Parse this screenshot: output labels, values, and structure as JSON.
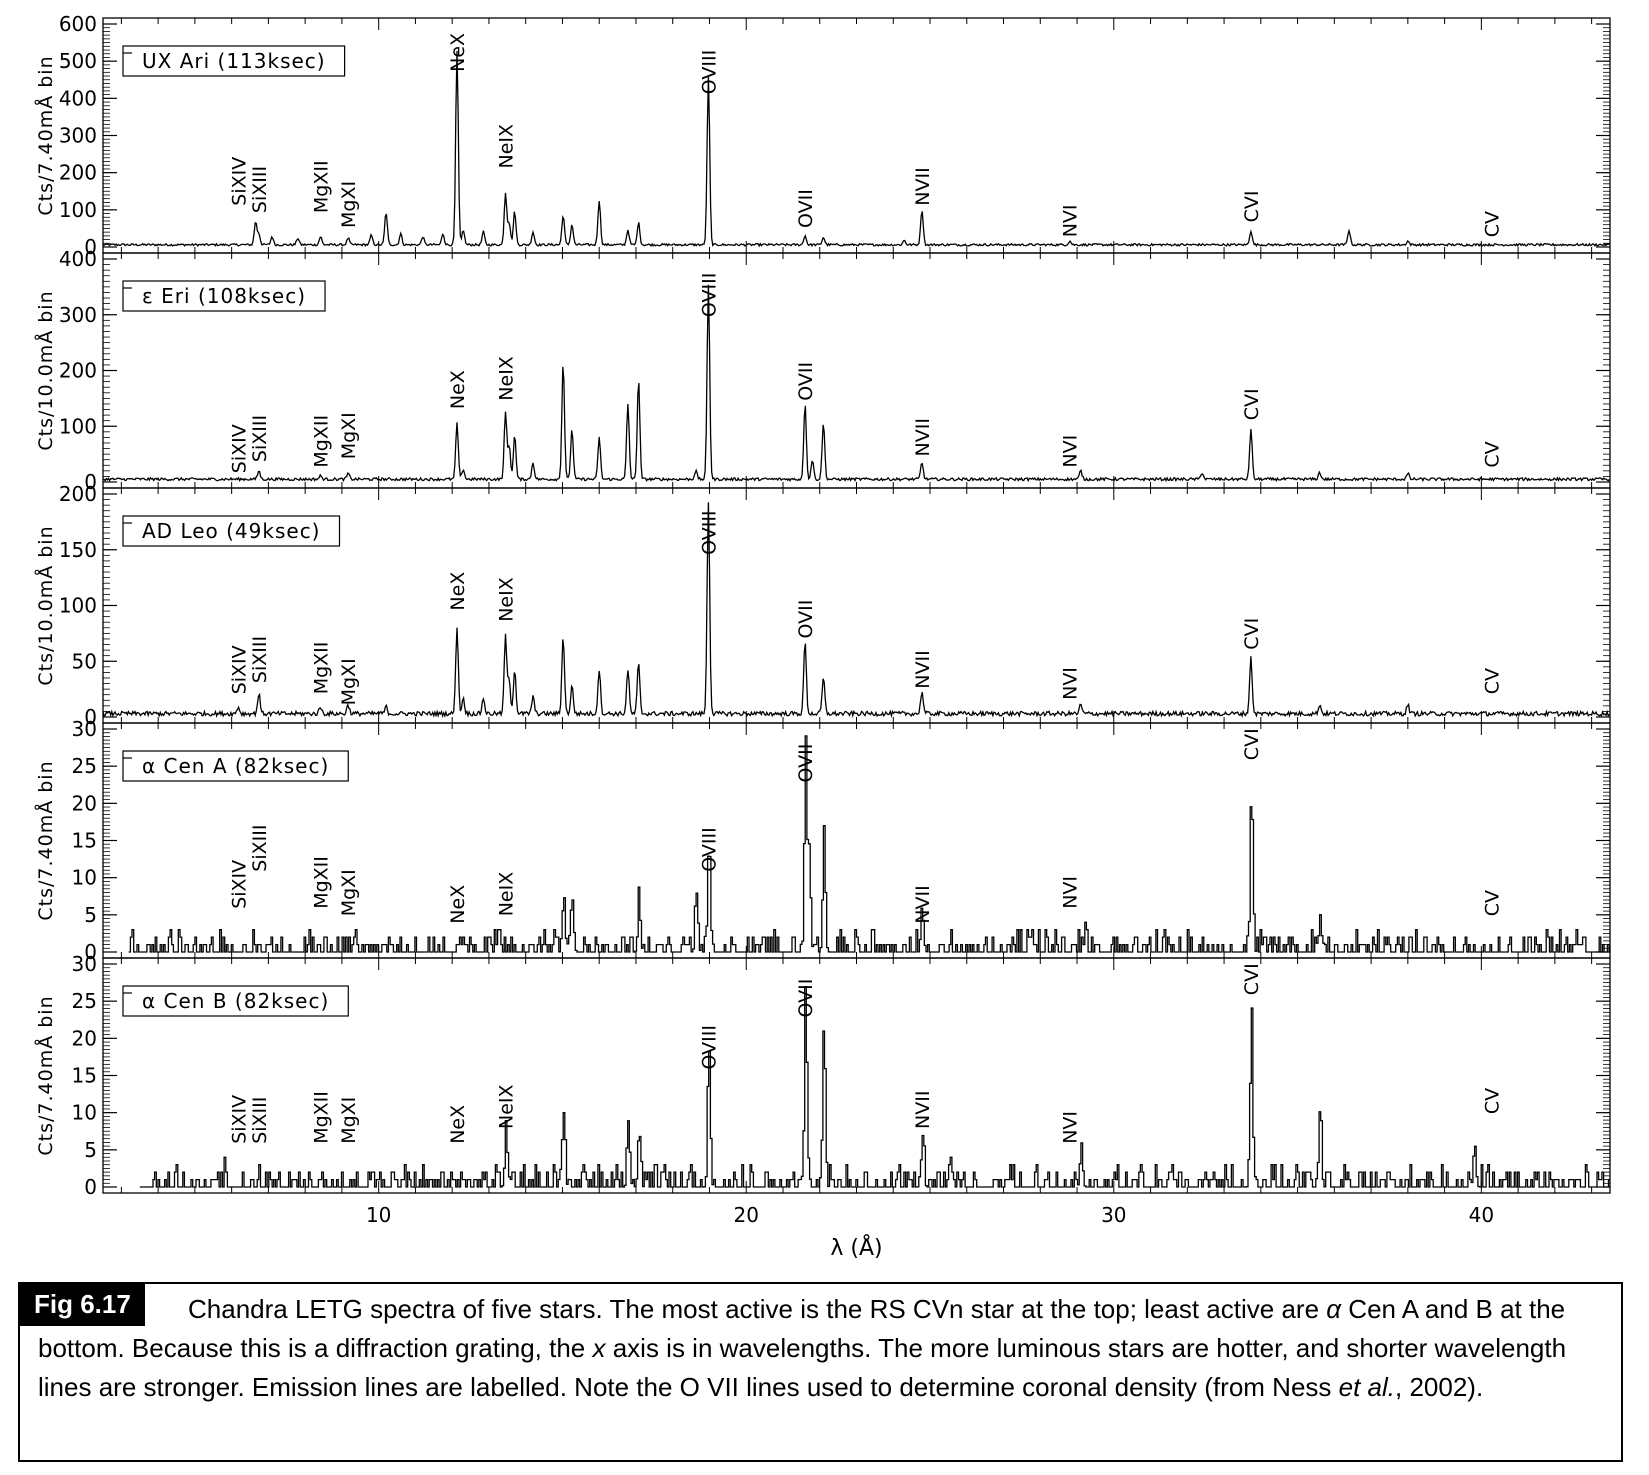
{
  "figure": {
    "xlabel": "λ (Å)",
    "xlim": [
      2.5,
      43.5
    ],
    "xticks": [
      10,
      20,
      30,
      40
    ]
  },
  "chart_data": [
    {
      "type": "line",
      "label": "UX Ari (113ksec)",
      "ylabel": "Cts/7.40mÅ bin",
      "ylim": [
        0,
        600
      ],
      "yticks": [
        0,
        100,
        200,
        300,
        400,
        500,
        600
      ],
      "baseline": 6,
      "noise": 3,
      "spacing": 0.03,
      "start": 2.5,
      "lines": [
        [
          6.65,
          62
        ],
        [
          6.74,
          30
        ],
        [
          7.1,
          22
        ],
        [
          7.8,
          18
        ],
        [
          8.42,
          22
        ],
        [
          9.17,
          18
        ],
        [
          9.8,
          25
        ],
        [
          10.2,
          88
        ],
        [
          10.6,
          30
        ],
        [
          11.2,
          22
        ],
        [
          11.75,
          30
        ],
        [
          12.13,
          520
        ],
        [
          12.3,
          40
        ],
        [
          12.85,
          35
        ],
        [
          13.45,
          140
        ],
        [
          13.55,
          60
        ],
        [
          13.7,
          90
        ],
        [
          14.2,
          35
        ],
        [
          15.02,
          80
        ],
        [
          15.26,
          55
        ],
        [
          16.0,
          120
        ],
        [
          16.78,
          40
        ],
        [
          17.07,
          60
        ],
        [
          18.97,
          450
        ],
        [
          21.6,
          25
        ],
        [
          22.1,
          20
        ],
        [
          24.78,
          95
        ],
        [
          24.3,
          12
        ],
        [
          28.8,
          10
        ],
        [
          33.73,
          38
        ],
        [
          36.4,
          40
        ],
        [
          38.0,
          10
        ]
      ],
      "labels": [
        {
          "text": "SiXIV",
          "x": 6.18,
          "y": 95
        },
        {
          "text": "SiXIII",
          "x": 6.74,
          "y": 75
        },
        {
          "text": "MgXII",
          "x": 8.42,
          "y": 75
        },
        {
          "text": "MgXI",
          "x": 9.17,
          "y": 35
        },
        {
          "text": "NeX",
          "x": 12.13,
          "y": 455
        },
        {
          "text": "NeIX",
          "x": 13.45,
          "y": 195
        },
        {
          "text": "OVIII",
          "x": 18.97,
          "y": 395
        },
        {
          "text": "OVII",
          "x": 21.6,
          "y": 35
        },
        {
          "text": "NVII",
          "x": 24.78,
          "y": 95
        },
        {
          "text": "NVI",
          "x": 28.79,
          "y": 10
        },
        {
          "text": "CVI",
          "x": 33.73,
          "y": 50
        },
        {
          "text": "CV",
          "x": 40.27,
          "y": 10
        }
      ]
    },
    {
      "type": "line",
      "label": "ε Eri (108ksec)",
      "ylabel": "Cts/10.0mÅ bin",
      "ylim": [
        0,
        400
      ],
      "yticks": [
        0,
        100,
        200,
        300,
        400
      ],
      "baseline": 5,
      "noise": 2.5,
      "spacing": 0.03,
      "start": 2.5,
      "lines": [
        [
          6.74,
          15
        ],
        [
          8.42,
          6
        ],
        [
          9.17,
          10
        ],
        [
          12.13,
          100
        ],
        [
          12.3,
          18
        ],
        [
          13.45,
          120
        ],
        [
          13.55,
          60
        ],
        [
          13.7,
          80
        ],
        [
          14.2,
          30
        ],
        [
          15.02,
          210
        ],
        [
          15.26,
          90
        ],
        [
          16.0,
          75
        ],
        [
          16.78,
          135
        ],
        [
          17.07,
          180
        ],
        [
          18.63,
          15
        ],
        [
          18.97,
          350
        ],
        [
          21.6,
          135
        ],
        [
          21.8,
          35
        ],
        [
          22.1,
          100
        ],
        [
          24.78,
          30
        ],
        [
          29.1,
          15
        ],
        [
          32.4,
          12
        ],
        [
          33.73,
          90
        ],
        [
          35.6,
          12
        ],
        [
          38.0,
          10
        ]
      ],
      "labels": [
        {
          "text": "SiXIV",
          "x": 6.18,
          "y": 5
        },
        {
          "text": "SiXIII",
          "x": 6.74,
          "y": 25
        },
        {
          "text": "MgXII",
          "x": 8.42,
          "y": 15
        },
        {
          "text": "MgXI",
          "x": 9.17,
          "y": 30
        },
        {
          "text": "NeX",
          "x": 12.13,
          "y": 120
        },
        {
          "text": "NeIX",
          "x": 13.45,
          "y": 135
        },
        {
          "text": "OVIII",
          "x": 18.97,
          "y": 285
        },
        {
          "text": "OVII",
          "x": 21.6,
          "y": 135
        },
        {
          "text": "NVII",
          "x": 24.78,
          "y": 35
        },
        {
          "text": "NVI",
          "x": 28.79,
          "y": 15
        },
        {
          "text": "CVI",
          "x": 33.73,
          "y": 100
        },
        {
          "text": "CV",
          "x": 40.27,
          "y": 15
        }
      ]
    },
    {
      "type": "line",
      "label": "AD Leo (49ksec)",
      "ylabel": "Cts/10.0mÅ bin",
      "ylim": [
        0,
        200
      ],
      "yticks": [
        0,
        50,
        100,
        150,
        200
      ],
      "baseline": 3,
      "noise": 2,
      "spacing": 0.03,
      "start": 2.5,
      "lines": [
        [
          6.18,
          6
        ],
        [
          6.74,
          18
        ],
        [
          8.42,
          6
        ],
        [
          9.17,
          8
        ],
        [
          10.2,
          6
        ],
        [
          12.13,
          78
        ],
        [
          12.3,
          14
        ],
        [
          12.85,
          14
        ],
        [
          13.45,
          70
        ],
        [
          13.55,
          30
        ],
        [
          13.7,
          40
        ],
        [
          14.2,
          15
        ],
        [
          15.02,
          70
        ],
        [
          15.26,
          25
        ],
        [
          16.0,
          40
        ],
        [
          16.78,
          40
        ],
        [
          17.07,
          45
        ],
        [
          18.97,
          190
        ],
        [
          21.6,
          65
        ],
        [
          22.1,
          32
        ],
        [
          24.78,
          20
        ],
        [
          29.1,
          8
        ],
        [
          33.73,
          50
        ],
        [
          35.6,
          8
        ],
        [
          38.0,
          8
        ]
      ],
      "labels": [
        {
          "text": "SiXIV",
          "x": 6.18,
          "y": 15
        },
        {
          "text": "SiXIII",
          "x": 6.74,
          "y": 25
        },
        {
          "text": "MgXII",
          "x": 8.42,
          "y": 15
        },
        {
          "text": "MgXI",
          "x": 9.17,
          "y": 5
        },
        {
          "text": "NeX",
          "x": 12.13,
          "y": 90
        },
        {
          "text": "NeIX",
          "x": 13.45,
          "y": 80
        },
        {
          "text": "OVIII",
          "x": 18.97,
          "y": 140
        },
        {
          "text": "OVII",
          "x": 21.6,
          "y": 65
        },
        {
          "text": "NVII",
          "x": 24.78,
          "y": 20
        },
        {
          "text": "NVI",
          "x": 28.79,
          "y": 10
        },
        {
          "text": "CVI",
          "x": 33.73,
          "y": 55
        },
        {
          "text": "CV",
          "x": 40.27,
          "y": 15
        }
      ]
    },
    {
      "type": "line",
      "label": "α Cen A (82ksec)",
      "ylabel": "Cts/7.40mÅ bin",
      "ylim": [
        0,
        30
      ],
      "yticks": [
        0,
        5,
        10,
        15,
        20,
        25,
        30
      ],
      "baseline": 1.4,
      "noise": 2.6,
      "spacing": 0.045,
      "start": 3.2,
      "lines": [
        [
          15.02,
          8
        ],
        [
          15.26,
          6
        ],
        [
          17.07,
          7
        ],
        [
          18.63,
          8
        ],
        [
          18.97,
          14
        ],
        [
          21.6,
          28
        ],
        [
          21.7,
          14
        ],
        [
          22.1,
          16
        ],
        [
          24.78,
          5
        ],
        [
          33.73,
          23
        ],
        [
          35.6,
          5
        ]
      ],
      "labels": [
        {
          "text": "SiXIV",
          "x": 6.18,
          "y": 5
        },
        {
          "text": "SiXIII",
          "x": 6.74,
          "y": 10
        },
        {
          "text": "MgXII",
          "x": 8.42,
          "y": 5
        },
        {
          "text": "MgXI",
          "x": 9.17,
          "y": 4
        },
        {
          "text": "NeX",
          "x": 12.13,
          "y": 3
        },
        {
          "text": "NeIX",
          "x": 13.45,
          "y": 4
        },
        {
          "text": "OVIII",
          "x": 18.97,
          "y": 10
        },
        {
          "text": "OVII",
          "x": 21.6,
          "y": 22
        },
        {
          "text": "NVII",
          "x": 24.78,
          "y": 3
        },
        {
          "text": "NVI",
          "x": 28.79,
          "y": 5
        },
        {
          "text": "CVI",
          "x": 33.73,
          "y": 25
        },
        {
          "text": "CV",
          "x": 40.27,
          "y": 4
        }
      ]
    },
    {
      "type": "line",
      "label": "α Cen B (82ksec)",
      "ylabel": "Cts/7.40mÅ bin",
      "ylim": [
        0,
        30
      ],
      "yticks": [
        0,
        5,
        10,
        15,
        20,
        25,
        30
      ],
      "baseline": 1.4,
      "noise": 2.6,
      "spacing": 0.045,
      "start": 3.5,
      "lines": [
        [
          13.45,
          7
        ],
        [
          15.02,
          10
        ],
        [
          16.78,
          9
        ],
        [
          17.07,
          8
        ],
        [
          18.97,
          19
        ],
        [
          21.6,
          26
        ],
        [
          22.1,
          23
        ],
        [
          24.78,
          7
        ],
        [
          29.1,
          6
        ],
        [
          33.73,
          23
        ],
        [
          35.6,
          10
        ],
        [
          39.8,
          6
        ]
      ],
      "labels": [
        {
          "text": "SiXIV",
          "x": 6.18,
          "y": 5
        },
        {
          "text": "SiXIII",
          "x": 6.74,
          "y": 5
        },
        {
          "text": "MgXII",
          "x": 8.42,
          "y": 5
        },
        {
          "text": "MgXI",
          "x": 9.17,
          "y": 5
        },
        {
          "text": "NeX",
          "x": 12.13,
          "y": 5
        },
        {
          "text": "NeIX",
          "x": 13.45,
          "y": 7
        },
        {
          "text": "OVIII",
          "x": 18.97,
          "y": 15
        },
        {
          "text": "OVII",
          "x": 21.6,
          "y": 22
        },
        {
          "text": "NVII",
          "x": 24.78,
          "y": 7
        },
        {
          "text": "NVI",
          "x": 28.79,
          "y": 5
        },
        {
          "text": "CVI",
          "x": 33.73,
          "y": 25
        },
        {
          "text": "CV",
          "x": 40.27,
          "y": 9
        }
      ]
    }
  ],
  "caption": {
    "fig_label": "Fig 6.17",
    "text_1": "Chandra LETG spectra of five stars. The most active is the RS CVn star at the top; least active are ",
    "alpha": "α",
    "text_2": " Cen A and B at the bottom. Because this is a diffraction grating, the ",
    "x_italic": "x",
    "text_3": " axis is in wavelengths. The more luminous stars are hotter, and shorter wavelength lines are stronger. Emission lines are labelled. Note the O VII lines used to determine coronal density (from Ness ",
    "etal": "et al.",
    "text_4": ", 2002)."
  }
}
